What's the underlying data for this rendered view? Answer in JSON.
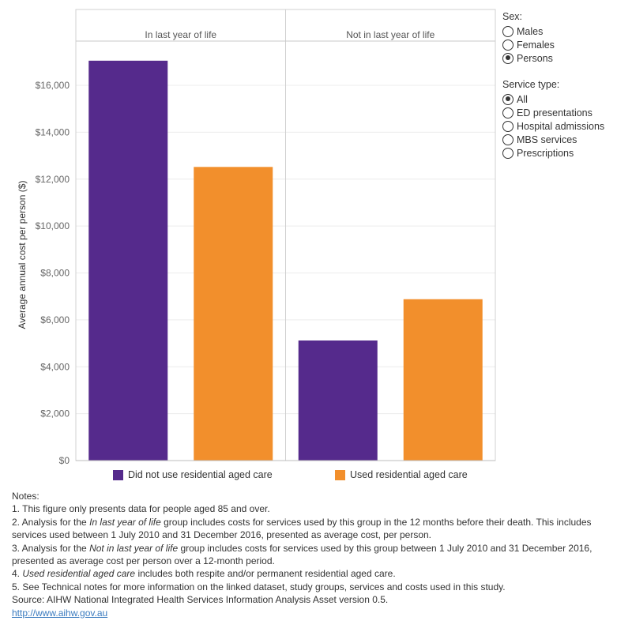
{
  "chart_data": {
    "type": "bar",
    "panels": [
      "In last year of life",
      "Not in last year of life"
    ],
    "series": [
      {
        "name": "Did not use residential aged care",
        "color": "#552a8c",
        "values": [
          17050,
          5120
        ]
      },
      {
        "name": "Used residential aged care",
        "color": "#f28f2c",
        "values": [
          12520,
          6880
        ]
      }
    ],
    "ylabel": "Average annual cost per person ($)",
    "ylim": [
      0,
      18500
    ],
    "yticks": [
      0,
      2000,
      4000,
      6000,
      8000,
      10000,
      12000,
      14000,
      16000
    ],
    "ytick_labels": [
      "$0",
      "$2,000",
      "$4,000",
      "$6,000",
      "$8,000",
      "$10,000",
      "$12,000",
      "$14,000",
      "$16,000"
    ],
    "grid": true,
    "legend_position": "bottom"
  },
  "filters": {
    "sex": {
      "title": "Sex:",
      "options": [
        "Males",
        "Females",
        "Persons"
      ],
      "selected": 2
    },
    "service_type": {
      "title": "Service type:",
      "options": [
        "All",
        "ED presentations",
        "Hospital admissions",
        "MBS services",
        "Prescriptions"
      ],
      "selected": 0
    }
  },
  "notes": {
    "heading": "Notes:",
    "n1": "1.  This figure only presents data for people aged 85 and over.",
    "n2_pre": "2.  Analysis for the ",
    "n2_em": "In last year of life",
    "n2_post": " group includes costs for services used by this group in the 12 months before their death. This includes services used between 1 July 2010 and 31 December 2016, presented as average cost, per person.",
    "n3_pre": "3.  Analysis for the ",
    "n3_em": "Not in last year of life",
    "n3_post": " group includes costs for services used by this group between 1 July 2010 and 31 December 2016, presented as average cost per person over a 12-month period.",
    "n4_pre": "4.  ",
    "n4_em": "Used residential aged care",
    "n4_post": " includes both respite and/or permanent residential aged care.",
    "n5": "5.  See Technical notes for more information on the linked dataset, study groups, services and costs used in this study.",
    "source": "Source: AIHW National Integrated Health Services Information Analysis Asset version 0.5.",
    "link": "http://www.aihw.gov.au"
  }
}
